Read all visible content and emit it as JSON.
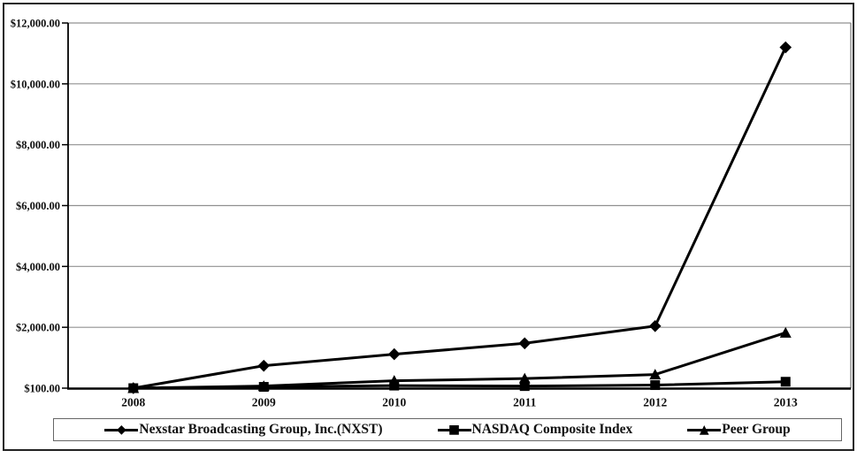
{
  "chart_data": {
    "type": "line",
    "title": "",
    "xlabel": "",
    "ylabel": "",
    "x": [
      "2008",
      "2009",
      "2010",
      "2011",
      "2012",
      "2013"
    ],
    "y_axis": {
      "tick_values": [
        100,
        2000,
        4000,
        6000,
        8000,
        10000,
        12000
      ],
      "tick_labels": [
        "$100.00",
        "$2,000.00",
        "$4,000.00",
        "$6,000.00",
        "$8,000.00",
        "$10,000.00",
        "$12,000.00"
      ],
      "ylim": [
        100,
        12000
      ],
      "note": "ticks drawn equally spaced as in source chart"
    },
    "grid": "horizontal-only",
    "legend_position": "bottom",
    "series": [
      {
        "name": "Nexstar Broadcasting Group, Inc.(NXST)",
        "marker": "diamond",
        "color": "#000000",
        "values": [
          100,
          800,
          1160,
          1500,
          2040,
          11200
        ]
      },
      {
        "name": "NASDAQ Composite Index",
        "marker": "square",
        "color": "#000000",
        "values": [
          100,
          140,
          180,
          165,
          195,
          300
        ]
      },
      {
        "name": "Peer Group",
        "marker": "triangle",
        "color": "#000000",
        "values": [
          100,
          165,
          330,
          400,
          525,
          1830
        ]
      }
    ]
  },
  "icons": {
    "diamond": "◆",
    "square": "■",
    "triangle": "▲"
  },
  "colors": {
    "line": "#000000",
    "gridline": "#909090",
    "axis": "#000000",
    "frame_border": "#222222",
    "legend_border": "#666666"
  }
}
